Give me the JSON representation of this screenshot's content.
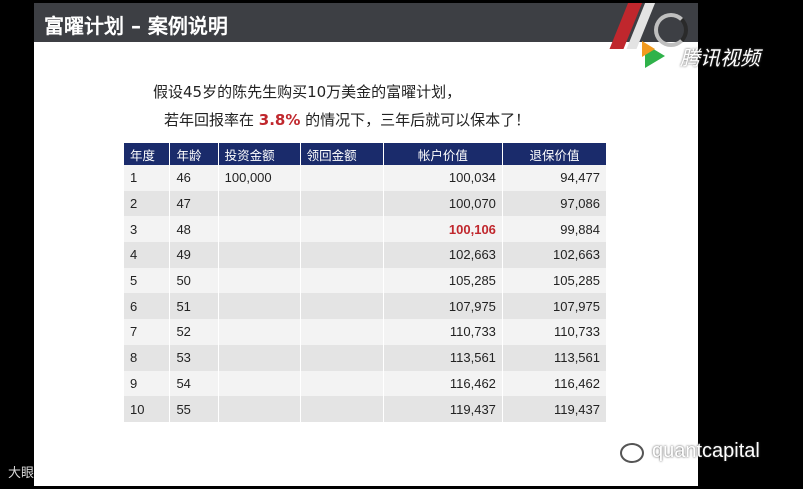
{
  "slide": {
    "title": "富曜计划 – 案例说明",
    "intro_line1": "假设45岁的陈先生购买10万美金的富曜计划，",
    "intro_line2_pre": "若年回报率在 ",
    "intro_line2_rate": "3.8%",
    "intro_line2_post": " 的情况下，三年后就可以保本了！"
  },
  "table": {
    "headers": [
      "年度",
      "年龄",
      "投资金额",
      "领回金额",
      "帐户价值",
      "退保价值"
    ],
    "rows": [
      [
        "1",
        "46",
        "100,000",
        "",
        "100,034",
        "94,477"
      ],
      [
        "2",
        "47",
        "",
        "",
        "100,070",
        "97,086"
      ],
      [
        "3",
        "48",
        "",
        "",
        "100,106",
        "99,884"
      ],
      [
        "4",
        "49",
        "",
        "",
        "102,663",
        "102,663"
      ],
      [
        "5",
        "50",
        "",
        "",
        "105,285",
        "105,285"
      ],
      [
        "6",
        "51",
        "",
        "",
        "107,975",
        "107,975"
      ],
      [
        "7",
        "52",
        "",
        "",
        "110,733",
        "110,733"
      ],
      [
        "8",
        "53",
        "",
        "",
        "113,561",
        "113,561"
      ],
      [
        "9",
        "54",
        "",
        "",
        "116,462",
        "116,462"
      ],
      [
        "10",
        "55",
        "",
        "",
        "119,437",
        "119,437"
      ]
    ]
  },
  "watermarks": {
    "tencent": "腾讯视频",
    "quant": "quantcapital",
    "left": "大眼踏境"
  },
  "colors": {
    "banner": "#3d3f44",
    "header": "#1a2b6b",
    "highlight": "#c0272d"
  }
}
